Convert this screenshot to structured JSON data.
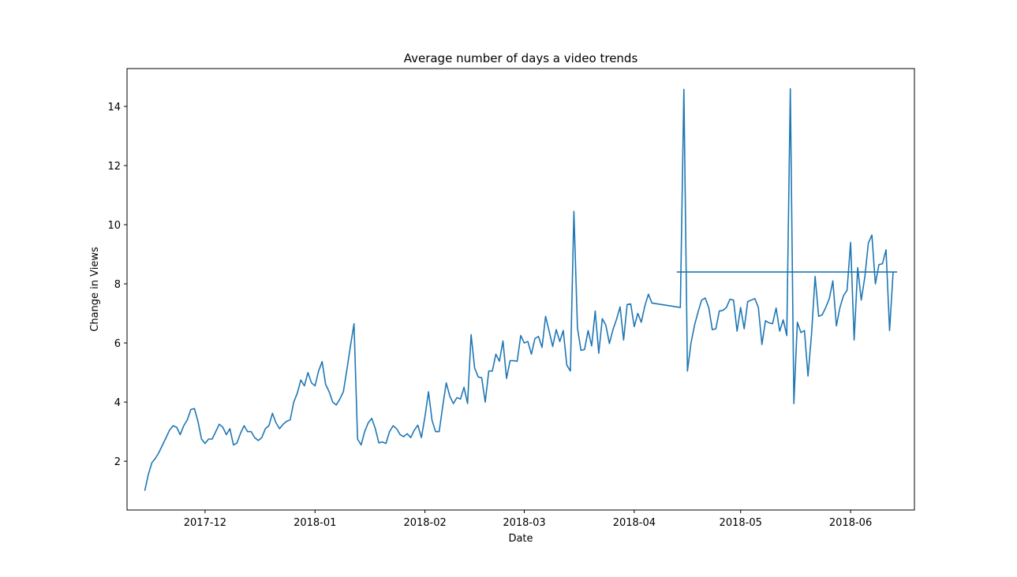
{
  "chart_data": {
    "type": "line",
    "title": "Average number of days a video trends",
    "xlabel": "Date",
    "ylabel": "Change in Views",
    "x_type": "date",
    "xlim": [
      "2017-11-09",
      "2018-06-19"
    ],
    "ylim": [
      0.35,
      15.28
    ],
    "grid": false,
    "line_color": "#1f77b4",
    "x_ticks": [
      {
        "date": "2017-12-01",
        "label": "2017-12"
      },
      {
        "date": "2018-01-01",
        "label": "2018-01"
      },
      {
        "date": "2018-02-01",
        "label": "2018-02"
      },
      {
        "date": "2018-03-01",
        "label": "2018-03"
      },
      {
        "date": "2018-04-01",
        "label": "2018-04"
      },
      {
        "date": "2018-05-01",
        "label": "2018-05"
      },
      {
        "date": "2018-06-01",
        "label": "2018-06"
      }
    ],
    "y_ticks": [
      {
        "value": 2,
        "label": "2"
      },
      {
        "value": 4,
        "label": "4"
      },
      {
        "value": 6,
        "label": "6"
      },
      {
        "value": 8,
        "label": "8"
      },
      {
        "value": 10,
        "label": "10"
      },
      {
        "value": 12,
        "label": "12"
      },
      {
        "value": 14,
        "label": "14"
      }
    ],
    "series": [
      {
        "x": [
          "2017-11-14",
          "2017-11-15",
          "2017-11-16",
          "2017-11-17",
          "2017-11-18",
          "2017-11-19",
          "2017-11-20",
          "2017-11-21",
          "2017-11-22",
          "2017-11-23",
          "2017-11-24",
          "2017-11-25",
          "2017-11-26",
          "2017-11-27",
          "2017-11-28",
          "2017-11-29",
          "2017-11-30",
          "2017-12-01",
          "2017-12-02",
          "2017-12-03",
          "2017-12-04",
          "2017-12-05",
          "2017-12-06",
          "2017-12-07",
          "2017-12-08",
          "2017-12-09",
          "2017-12-10",
          "2017-12-11",
          "2017-12-12",
          "2017-12-13",
          "2017-12-14",
          "2017-12-15",
          "2017-12-16",
          "2017-12-17",
          "2017-12-18",
          "2017-12-19",
          "2017-12-20",
          "2017-12-21",
          "2017-12-22",
          "2017-12-23",
          "2017-12-24",
          "2017-12-25",
          "2017-12-26",
          "2017-12-27",
          "2017-12-28",
          "2017-12-29",
          "2017-12-30",
          "2017-12-31",
          "2018-01-01",
          "2018-01-02",
          "2018-01-03",
          "2018-01-04",
          "2018-01-05",
          "2018-01-06",
          "2018-01-07",
          "2018-01-08",
          "2018-01-09",
          "2018-01-10",
          "2018-01-11",
          "2018-01-12",
          "2018-01-13",
          "2018-01-14",
          "2018-01-15",
          "2018-01-16",
          "2018-01-17",
          "2018-01-18",
          "2018-01-19",
          "2018-01-20",
          "2018-01-21",
          "2018-01-22",
          "2018-01-23",
          "2018-01-24",
          "2018-01-25",
          "2018-01-26",
          "2018-01-27",
          "2018-01-28",
          "2018-01-29",
          "2018-01-30",
          "2018-01-31",
          "2018-02-01",
          "2018-02-02",
          "2018-02-03",
          "2018-02-04",
          "2018-02-05",
          "2018-02-06",
          "2018-02-07",
          "2018-02-08",
          "2018-02-09",
          "2018-02-10",
          "2018-02-11",
          "2018-02-12",
          "2018-02-13",
          "2018-02-14",
          "2018-02-15",
          "2018-02-16",
          "2018-02-17",
          "2018-02-18",
          "2018-02-19",
          "2018-02-20",
          "2018-02-21",
          "2018-02-22",
          "2018-02-23",
          "2018-02-24",
          "2018-02-25",
          "2018-02-26",
          "2018-02-27",
          "2018-02-28",
          "2018-03-01",
          "2018-03-02",
          "2018-03-03",
          "2018-03-04",
          "2018-03-05",
          "2018-03-06",
          "2018-03-07",
          "2018-03-08",
          "2018-03-09",
          "2018-03-10",
          "2018-03-11",
          "2018-03-12",
          "2018-03-13",
          "2018-03-14",
          "2018-03-15",
          "2018-03-16",
          "2018-03-17",
          "2018-03-18",
          "2018-03-19",
          "2018-03-20",
          "2018-03-21",
          "2018-03-22",
          "2018-03-23",
          "2018-03-24",
          "2018-03-25",
          "2018-03-26",
          "2018-03-27",
          "2018-03-28",
          "2018-03-29",
          "2018-03-30",
          "2018-03-31",
          "2018-04-01",
          "2018-04-02",
          "2018-04-03",
          "2018-04-04",
          "2018-04-05",
          "2018-04-06",
          "2018-04-14",
          "2018-04-15",
          "2018-04-16",
          "2018-04-17",
          "2018-04-18",
          "2018-04-19",
          "2018-04-20",
          "2018-04-21",
          "2018-04-22",
          "2018-04-23",
          "2018-04-24",
          "2018-04-25",
          "2018-04-26",
          "2018-04-27",
          "2018-04-28",
          "2018-04-29",
          "2018-04-30",
          "2018-05-01",
          "2018-05-02",
          "2018-05-03",
          "2018-05-04",
          "2018-05-05",
          "2018-05-06",
          "2018-05-07",
          "2018-05-08",
          "2018-05-09",
          "2018-05-10",
          "2018-05-11",
          "2018-05-12",
          "2018-05-13",
          "2018-05-14",
          "2018-05-15",
          "2018-05-16",
          "2018-05-17",
          "2018-05-18",
          "2018-05-19",
          "2018-05-20",
          "2018-05-21",
          "2018-05-22",
          "2018-05-23",
          "2018-05-24",
          "2018-05-25",
          "2018-05-26",
          "2018-05-27",
          "2018-05-28",
          "2018-05-29",
          "2018-05-30",
          "2018-05-31",
          "2018-06-01",
          "2018-06-02",
          "2018-06-03",
          "2018-06-04",
          "2018-06-05",
          "2018-06-06",
          "2018-06-07",
          "2018-06-08",
          "2018-06-09",
          "2018-06-10",
          "2018-06-11",
          "2018-06-12",
          "2018-06-13",
          "2018-06-14",
          "2018-04-13"
        ],
        "values": [
          1.0,
          1.55,
          1.95,
          2.1,
          2.3,
          2.55,
          2.8,
          3.05,
          3.2,
          3.15,
          2.9,
          3.2,
          3.4,
          3.75,
          3.78,
          3.35,
          2.75,
          2.6,
          2.75,
          2.75,
          3.0,
          3.25,
          3.15,
          2.9,
          3.1,
          2.55,
          2.62,
          2.95,
          3.2,
          3.0,
          3.0,
          2.8,
          2.7,
          2.8,
          3.1,
          3.2,
          3.62,
          3.3,
          3.1,
          3.25,
          3.35,
          3.4,
          4.0,
          4.3,
          4.75,
          4.55,
          5.0,
          4.65,
          4.55,
          5.05,
          5.37,
          4.6,
          4.35,
          4.0,
          3.9,
          4.1,
          4.35,
          5.1,
          5.9,
          6.65,
          2.75,
          2.55,
          3.0,
          3.3,
          3.45,
          3.1,
          2.62,
          2.65,
          2.6,
          3.0,
          3.2,
          3.1,
          2.9,
          2.83,
          2.93,
          2.8,
          3.05,
          3.22,
          2.8,
          3.5,
          4.35,
          3.38,
          3.0,
          3.0,
          3.85,
          4.65,
          4.2,
          3.95,
          4.15,
          4.1,
          4.5,
          3.95,
          6.28,
          5.15,
          4.85,
          4.82,
          4.0,
          5.05,
          5.05,
          5.62,
          5.38,
          6.07,
          4.8,
          5.4,
          5.4,
          5.38,
          6.25,
          6.0,
          6.05,
          5.62,
          6.15,
          6.22,
          5.85,
          6.9,
          6.4,
          5.88,
          6.45,
          6.05,
          6.42,
          5.25,
          5.05,
          10.45,
          6.5,
          5.75,
          5.78,
          6.42,
          5.9,
          7.08,
          5.65,
          6.82,
          6.6,
          5.98,
          6.45,
          6.8,
          7.22,
          6.1,
          7.3,
          7.32,
          6.55,
          7.0,
          6.7,
          7.25,
          7.65,
          7.35,
          7.2,
          14.58,
          5.05,
          6.0,
          6.6,
          7.05,
          7.45,
          7.52,
          7.2,
          6.45,
          6.48,
          7.08,
          7.1,
          7.2,
          7.48,
          7.45,
          6.4,
          7.2,
          6.48,
          7.4,
          7.45,
          7.5,
          7.2,
          5.95,
          6.75,
          6.68,
          6.65,
          7.18,
          6.4,
          6.78,
          6.25,
          14.6,
          3.95,
          6.7,
          6.35,
          6.42,
          4.88,
          6.3,
          8.25,
          6.9,
          6.95,
          7.2,
          7.5,
          8.1,
          6.58,
          7.2,
          7.6,
          7.78,
          9.4,
          6.1,
          8.55,
          7.45,
          8.22,
          9.38,
          9.65,
          8.0,
          8.65,
          8.68,
          9.15,
          6.42,
          8.4,
          8.4,
          8.4
        ]
      }
    ]
  }
}
